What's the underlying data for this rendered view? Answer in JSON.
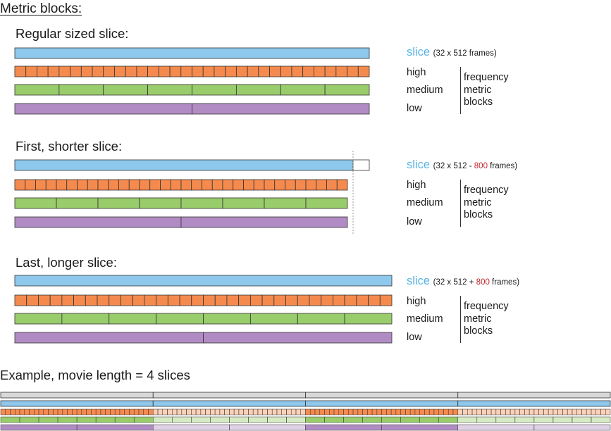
{
  "title": "Metric blocks:",
  "sections": [
    {
      "heading": "Regular sized slice:",
      "slice_word": "slice",
      "slice_detail_pre": "(32 x 512",
      "slice_detail_op": "",
      "slice_detail_delta": "",
      "slice_detail_post": " frames)",
      "band_high": "high",
      "band_medium": "medium",
      "band_low": "low",
      "freq_line1": "frequency",
      "freq_line2": "metric",
      "freq_line3": "blocks"
    },
    {
      "heading": "First, shorter slice:",
      "slice_word": "slice",
      "slice_detail_pre": "(32 x 512 - ",
      "slice_detail_op": "",
      "slice_detail_delta": "800",
      "slice_detail_post": " frames)",
      "band_high": "high",
      "band_medium": "medium",
      "band_low": "low",
      "freq_line1": "frequency",
      "freq_line2": "metric",
      "freq_line3": "blocks"
    },
    {
      "heading": "Last, longer slice:",
      "slice_word": "slice",
      "slice_detail_pre": "(32 x 512 + ",
      "slice_detail_op": "",
      "slice_detail_delta": "800",
      "slice_detail_post": " frames)",
      "band_high": "high",
      "band_medium": "medium",
      "band_low": "low",
      "freq_line1": "frequency",
      "freq_line2": "metric",
      "freq_line3": "blocks"
    }
  ],
  "example_heading": "Example, movie length = 4 slices",
  "colors": {
    "slice": "#8ec8ec",
    "high": "#f58a4e",
    "medium": "#99cc6a",
    "low": "#b18cc4",
    "outline": "#333333",
    "slice_word": "#5ab4e5",
    "delta": "#c0282e",
    "dotted": "#999999",
    "movie": "#d8d8d8"
  },
  "structure": {
    "high_blocks_per_slice": 32,
    "medium_blocks_per_slice": 8,
    "low_blocks_per_slice": 2,
    "example_slice_count": 4
  }
}
